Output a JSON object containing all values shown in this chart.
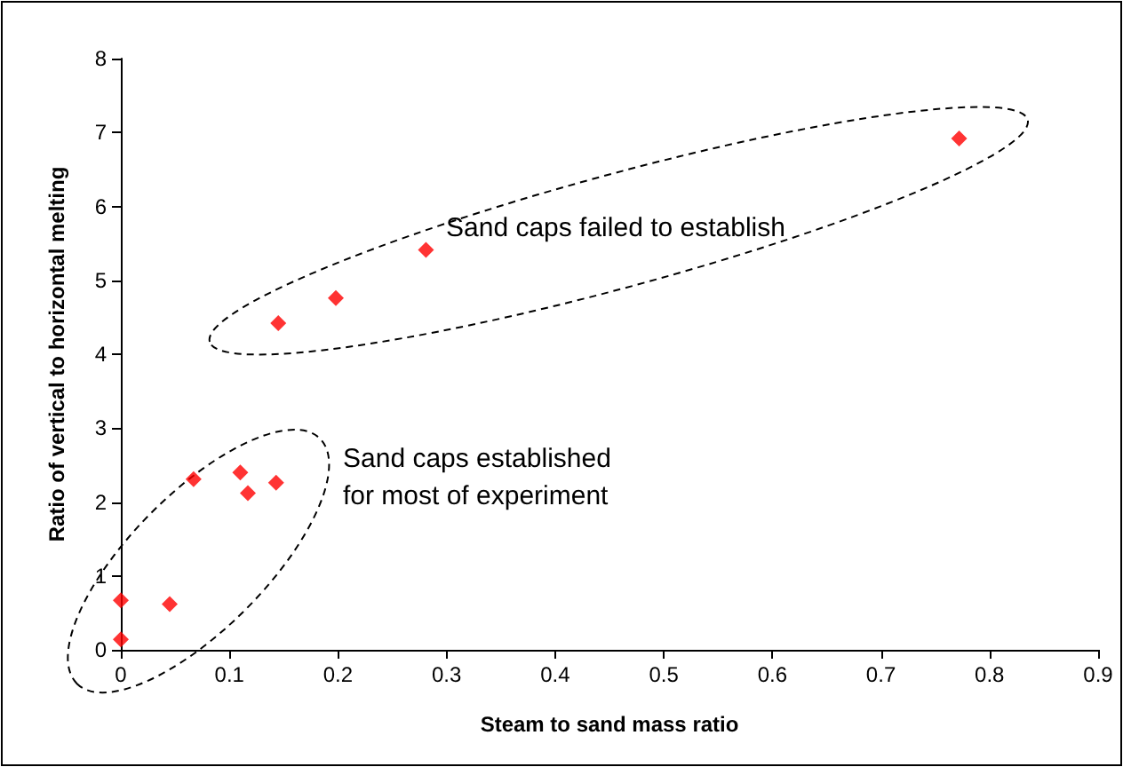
{
  "chart_data": {
    "type": "scatter",
    "xlabel": "Steam to sand mass ratio",
    "ylabel": "Ratio of vertical to horizontal melting",
    "x": [
      0,
      0,
      0.045,
      0.067,
      0.11,
      0.117,
      0.143,
      0.145,
      0.198,
      0.281,
      0.772
    ],
    "series": [
      {
        "color": "#ff0000",
        "values": [
          0.67,
          0.14,
          0.62,
          2.31,
          2.4,
          2.12,
          2.26,
          4.42,
          4.76,
          5.41,
          6.92
        ]
      }
    ],
    "xlim": [
      0,
      0.9
    ],
    "xticks": [
      0,
      0.1,
      0.2,
      0.3,
      0.4,
      0.5,
      0.6,
      0.7,
      0.8,
      0.9
    ],
    "ylim": [
      0,
      8
    ],
    "yticks": [
      0,
      1,
      2,
      3,
      4,
      5,
      6,
      7,
      8
    ],
    "marker": "diamond",
    "annotations": [
      "Sand caps failed to establish",
      "Sand caps established for most of experiment"
    ]
  }
}
